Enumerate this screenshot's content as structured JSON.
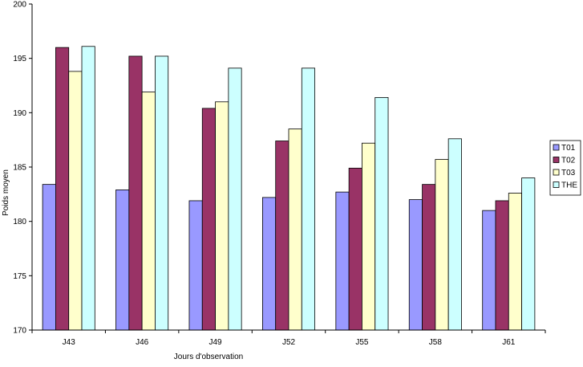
{
  "chart_data": {
    "type": "bar",
    "title": "",
    "xlabel": "Jours d'observation",
    "ylabel": "Poids moyen",
    "ylim": [
      170,
      200
    ],
    "yticks": [
      170,
      175,
      180,
      185,
      190,
      195,
      200
    ],
    "categories": [
      "J43",
      "J46",
      "J49",
      "J52",
      "J55",
      "J58",
      "J61"
    ],
    "series": [
      {
        "name": "T01",
        "color": "#9999ff",
        "values": [
          183.4,
          182.9,
          181.9,
          182.2,
          182.7,
          182.0,
          181.0
        ]
      },
      {
        "name": "T02",
        "color": "#993366",
        "values": [
          196.0,
          195.2,
          190.4,
          187.4,
          184.9,
          183.4,
          181.9
        ]
      },
      {
        "name": "T03",
        "color": "#ffffcc",
        "values": [
          193.8,
          191.9,
          191.0,
          188.5,
          187.2,
          185.7,
          182.6
        ]
      },
      {
        "name": "THE",
        "color": "#ccffff",
        "values": [
          196.1,
          195.2,
          194.1,
          194.1,
          191.4,
          187.6,
          184.0
        ]
      }
    ],
    "grid": false,
    "legend_position": "right"
  }
}
